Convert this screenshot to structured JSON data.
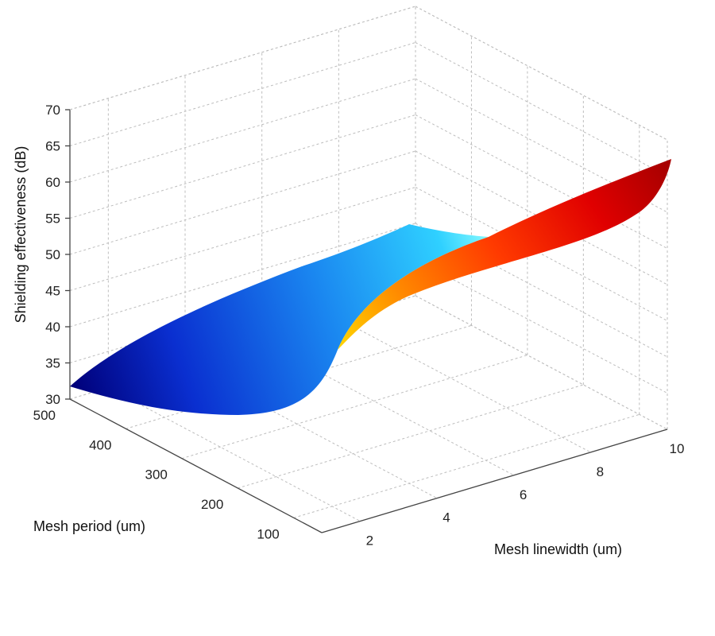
{
  "chart_data": {
    "type": "surface",
    "title": "",
    "xlabel": "Mesh linewidth (um)",
    "ylabel": "Mesh period (um)",
    "zlabel": "Shielding effectiveness (dB)",
    "x_ticks": [
      "2",
      "4",
      "6",
      "8",
      "10"
    ],
    "y_ticks": [
      "500",
      "400",
      "300",
      "200",
      "100"
    ],
    "z_ticks": [
      "30",
      "35",
      "40",
      "45",
      "50",
      "55",
      "60",
      "65",
      "70"
    ],
    "xlim": [
      1,
      10
    ],
    "ylim": [
      50,
      500
    ],
    "zlim": [
      30,
      70
    ],
    "grid": true,
    "colormap": "jet",
    "x": [
      1,
      2,
      3,
      4,
      5,
      6,
      7,
      8,
      9,
      10
    ],
    "y": [
      500,
      450,
      400,
      350,
      300,
      250,
      200,
      150,
      100,
      50
    ],
    "surface_corners": {
      "linewidth_1_period_500": 32,
      "linewidth_10_period_500": 54,
      "linewidth_1_period_50": 44,
      "linewidth_10_period_50": 68
    }
  }
}
